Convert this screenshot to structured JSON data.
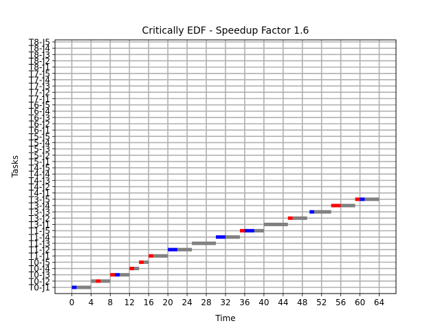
{
  "chart_data": {
    "type": "gantt",
    "title": "Critically EDF - Speedup Factor 1.6",
    "xlabel": "Time",
    "ylabel": "Tasks",
    "xlim": [
      -3.5,
      67.5
    ],
    "x_ticks": [
      0,
      4,
      8,
      12,
      16,
      20,
      24,
      28,
      32,
      36,
      40,
      44,
      48,
      52,
      56,
      60,
      64
    ],
    "grid": true,
    "tasks": [
      "T0-J1",
      "T0-J2",
      "T0-J3",
      "T0-J4",
      "T0-J5",
      "T1-J1",
      "T1-J2",
      "T1-J3",
      "T1-J4",
      "T1-J5",
      "T3-J1",
      "T3-J2",
      "T3-J3",
      "T3-J4",
      "T3-J5",
      "T4-J1",
      "T4-J2",
      "T4-J3",
      "T4-J4",
      "T4-J5",
      "T5-J1",
      "T5-J2",
      "T5-J3",
      "T5-J4",
      "T5-J5",
      "T6-J1",
      "T6-J2",
      "T6-J3",
      "T6-J4",
      "T6-J5",
      "T7-J1",
      "T7-J2",
      "T7-J3",
      "T7-J4",
      "T7-J5",
      "T8-J1",
      "T8-J2",
      "T8-J3",
      "T8-J4",
      "T8-J5"
    ],
    "segment_colors": {
      "blue": "#0000ff",
      "red": "#ff0000",
      "gray": "#808080"
    },
    "segments": [
      {
        "task": "T0-J1",
        "start": 0.0,
        "end": 1.0,
        "color": "blue"
      },
      {
        "task": "T0-J1",
        "start": 1.0,
        "end": 4.0,
        "color": "gray"
      },
      {
        "task": "T0-J2",
        "start": 4.0,
        "end": 5.0,
        "color": "gray"
      },
      {
        "task": "T0-J2",
        "start": 5.0,
        "end": 6.0,
        "color": "red"
      },
      {
        "task": "T0-J2",
        "start": 6.0,
        "end": 8.0,
        "color": "gray"
      },
      {
        "task": "T0-J3",
        "start": 8.0,
        "end": 9.0,
        "color": "red"
      },
      {
        "task": "T0-J3",
        "start": 9.0,
        "end": 10.0,
        "color": "blue"
      },
      {
        "task": "T0-J3",
        "start": 10.0,
        "end": 12.0,
        "color": "gray"
      },
      {
        "task": "T0-J4",
        "start": 12.0,
        "end": 13.0,
        "color": "red"
      },
      {
        "task": "T0-J4",
        "start": 13.0,
        "end": 14.0,
        "color": "gray"
      },
      {
        "task": "T0-J5",
        "start": 14.0,
        "end": 15.0,
        "color": "red"
      },
      {
        "task": "T0-J5",
        "start": 15.0,
        "end": 16.0,
        "color": "gray"
      },
      {
        "task": "T1-J1",
        "start": 16.0,
        "end": 17.0,
        "color": "red"
      },
      {
        "task": "T1-J1",
        "start": 17.0,
        "end": 20.0,
        "color": "gray"
      },
      {
        "task": "T1-J2",
        "start": 20.0,
        "end": 22.0,
        "color": "blue"
      },
      {
        "task": "T1-J2",
        "start": 22.0,
        "end": 25.0,
        "color": "gray"
      },
      {
        "task": "T1-J3",
        "start": 25.0,
        "end": 30.0,
        "color": "gray"
      },
      {
        "task": "T1-J4",
        "start": 30.0,
        "end": 32.0,
        "color": "blue"
      },
      {
        "task": "T1-J4",
        "start": 32.0,
        "end": 35.0,
        "color": "gray"
      },
      {
        "task": "T1-J5",
        "start": 35.0,
        "end": 36.0,
        "color": "red"
      },
      {
        "task": "T1-J5",
        "start": 36.0,
        "end": 38.0,
        "color": "blue"
      },
      {
        "task": "T1-J5",
        "start": 38.0,
        "end": 40.0,
        "color": "gray"
      },
      {
        "task": "T3-J1",
        "start": 40.0,
        "end": 45.0,
        "color": "gray"
      },
      {
        "task": "T3-J2",
        "start": 45.0,
        "end": 46.0,
        "color": "red"
      },
      {
        "task": "T3-J2",
        "start": 46.0,
        "end": 49.0,
        "color": "gray"
      },
      {
        "task": "T3-J3",
        "start": 49.5,
        "end": 50.5,
        "color": "blue"
      },
      {
        "task": "T3-J3",
        "start": 50.5,
        "end": 54.0,
        "color": "gray"
      },
      {
        "task": "T3-J4",
        "start": 54.0,
        "end": 56.0,
        "color": "red"
      },
      {
        "task": "T3-J4",
        "start": 56.0,
        "end": 59.0,
        "color": "gray"
      },
      {
        "task": "T3-J5",
        "start": 59.0,
        "end": 60.0,
        "color": "red"
      },
      {
        "task": "T3-J5",
        "start": 60.0,
        "end": 61.0,
        "color": "blue"
      },
      {
        "task": "T3-J5",
        "start": 61.0,
        "end": 64.0,
        "color": "gray"
      }
    ]
  }
}
